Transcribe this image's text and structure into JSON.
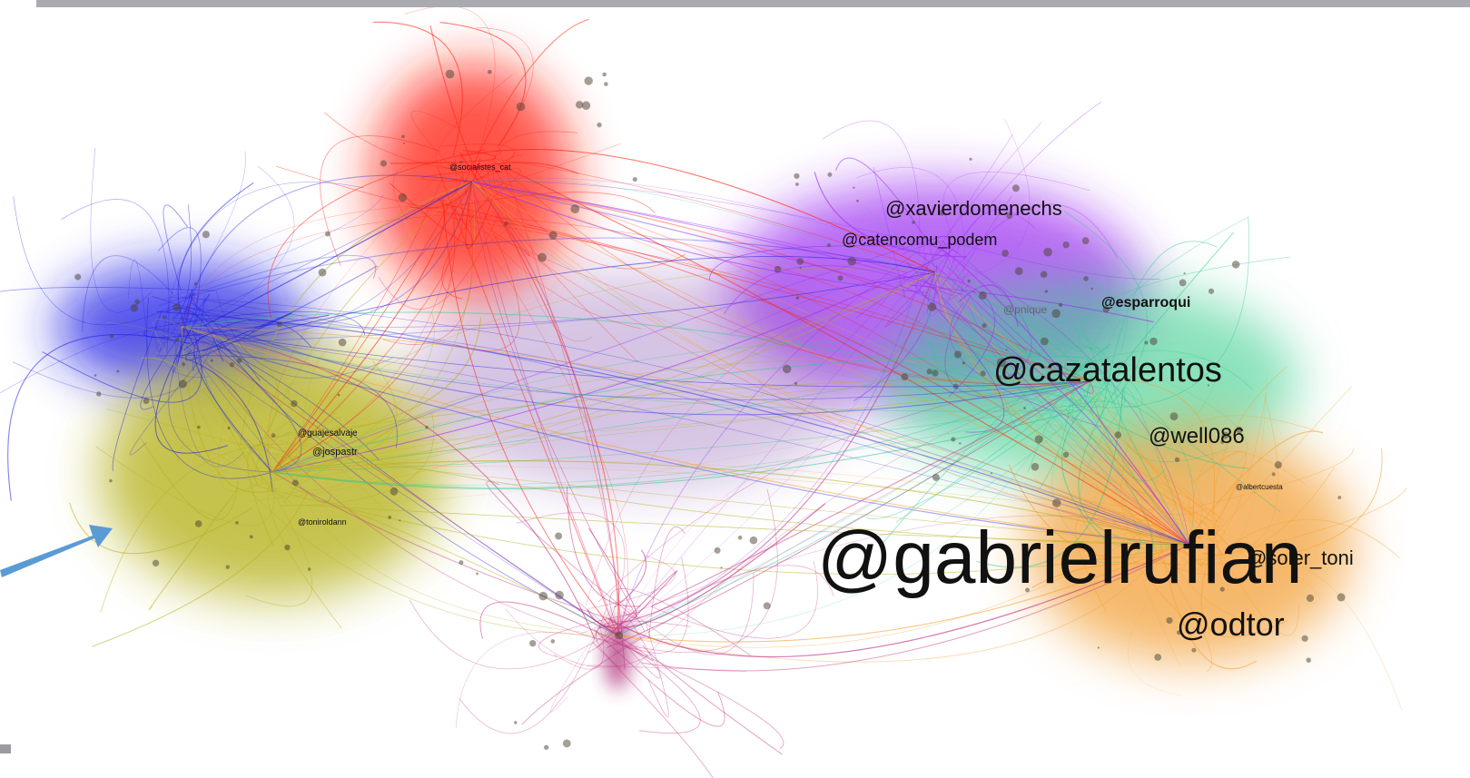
{
  "nodes": [
    {
      "label": "@socialistes_cat"
    },
    {
      "label": "@xavierdomenechs"
    },
    {
      "label": "@catencomu_podem"
    },
    {
      "label": "@esparroqui"
    },
    {
      "label": "@pnique"
    },
    {
      "label": "@cazatalentos"
    },
    {
      "label": "@well086"
    },
    {
      "label": "@albertcuesta"
    },
    {
      "label": "@soler_toni"
    },
    {
      "label": "@gabrielrufian"
    },
    {
      "label": "@odtor"
    },
    {
      "label": "@guajesalvaje"
    },
    {
      "label": "@jospastr"
    },
    {
      "label": "@toniroldann"
    }
  ]
}
